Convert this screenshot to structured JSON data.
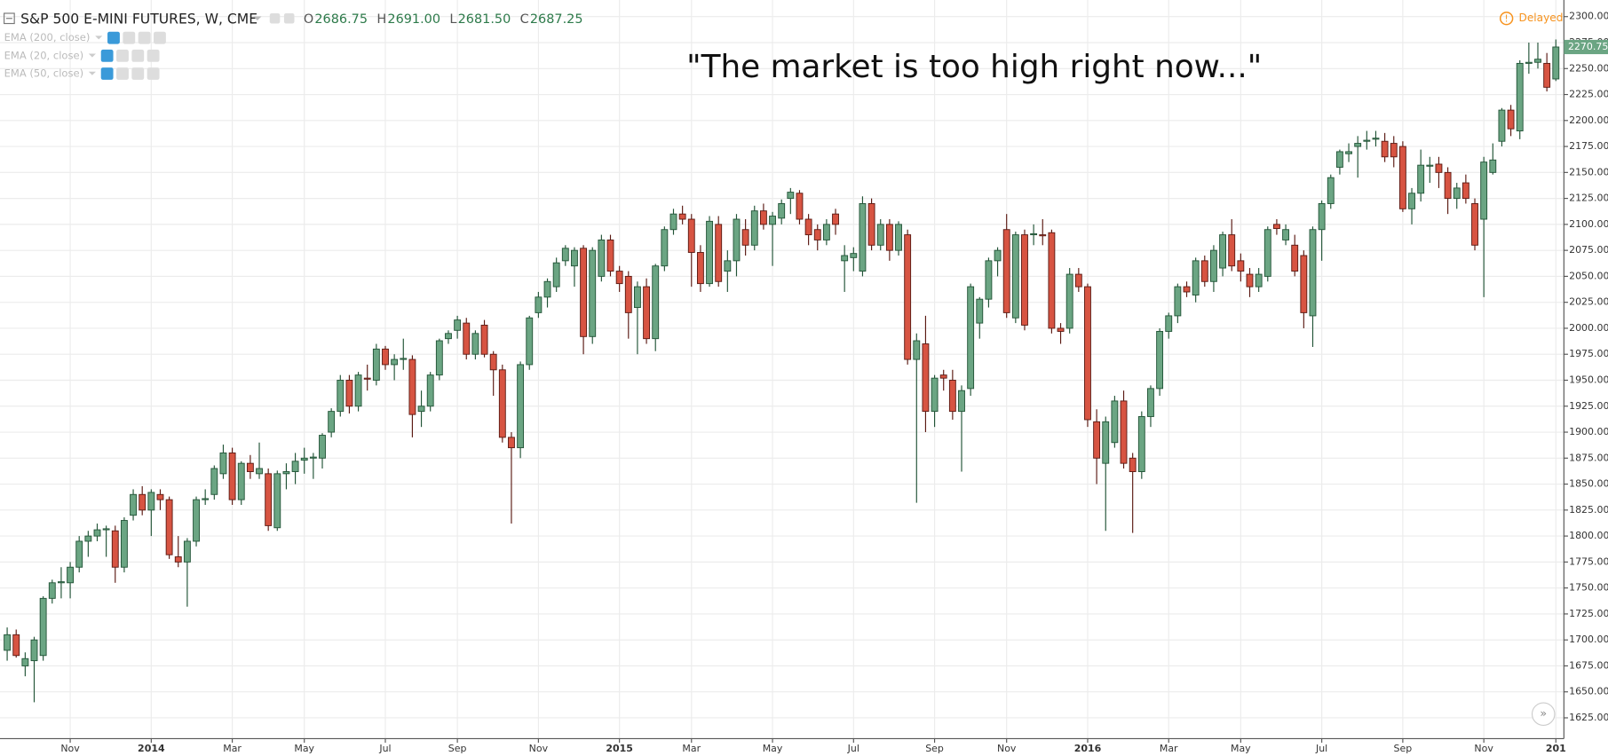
{
  "header": {
    "title": "S&P 500 E-MINI FUTURES, W, CME",
    "quotes": [
      {
        "label": "O",
        "value": "2686.75"
      },
      {
        "label": "H",
        "value": "2691.00"
      },
      {
        "label": "L",
        "value": "2681.50"
      },
      {
        "label": "C",
        "value": "2687.25"
      }
    ],
    "indicators": [
      "EMA (200, close)",
      "EMA (20, close)",
      "EMA (50, close)"
    ],
    "status": "Delayed"
  },
  "chart_data": {
    "type": "candlestick",
    "annotation": "\"The market is too high right now...\"",
    "up_color": "#6ba583",
    "up_border": "#225437",
    "down_color": "#d75442",
    "down_border": "#5b1a13",
    "grid": true,
    "ylim": [
      1605,
      2316
    ],
    "yticks": [
      {
        "value": 1625,
        "label": "1625.00"
      },
      {
        "value": 1650,
        "label": "1650.00"
      },
      {
        "value": 1675,
        "label": "1675.00"
      },
      {
        "value": 1700,
        "label": "1700.00"
      },
      {
        "value": 1725,
        "label": "1725.00"
      },
      {
        "value": 1750,
        "label": "1750.00"
      },
      {
        "value": 1775,
        "label": "1775.00"
      },
      {
        "value": 1800,
        "label": "1800.00"
      },
      {
        "value": 1825,
        "label": "1825.00"
      },
      {
        "value": 1850,
        "label": "1850.00"
      },
      {
        "value": 1875,
        "label": "1875.00"
      },
      {
        "value": 1900,
        "label": "1900.00"
      },
      {
        "value": 1925,
        "label": "1925.00"
      },
      {
        "value": 1950,
        "label": "1950.00"
      },
      {
        "value": 1975,
        "label": "1975.00"
      },
      {
        "value": 2000,
        "label": "2000.00"
      },
      {
        "value": 2025,
        "label": "2025.00"
      },
      {
        "value": 2050,
        "label": "2050.00"
      },
      {
        "value": 2075,
        "label": "2075.00"
      },
      {
        "value": 2100,
        "label": "2100.00"
      },
      {
        "value": 2125,
        "label": "2125.00"
      },
      {
        "value": 2150,
        "label": "2150.00"
      },
      {
        "value": 2175,
        "label": "2175.00"
      },
      {
        "value": 2200,
        "label": "2200.00"
      },
      {
        "value": 2225,
        "label": "2225.00"
      },
      {
        "value": 2250,
        "label": "2250.00"
      },
      {
        "value": 2275,
        "label": "2275.00"
      },
      {
        "value": 2300,
        "label": "2300.00"
      }
    ],
    "categories": [
      null,
      null,
      null,
      null,
      null,
      null,
      null,
      "Nov",
      null,
      null,
      null,
      null,
      null,
      null,
      null,
      null,
      "2014",
      null,
      null,
      null,
      null,
      null,
      null,
      null,
      null,
      "Mar",
      null,
      null,
      null,
      null,
      null,
      null,
      null,
      "May",
      null,
      null,
      null,
      null,
      null,
      null,
      null,
      null,
      "Jul",
      null,
      null,
      null,
      null,
      null,
      null,
      null,
      "Sep",
      null,
      null,
      null,
      null,
      null,
      null,
      null,
      null,
      "Nov",
      null,
      null,
      null,
      null,
      null,
      null,
      null,
      null,
      "2015",
      null,
      null,
      null,
      null,
      null,
      null,
      null,
      "Mar",
      null,
      null,
      null,
      null,
      null,
      null,
      null,
      null,
      "May",
      null,
      null,
      null,
      null,
      null,
      null,
      null,
      null,
      "Jul",
      null,
      null,
      null,
      null,
      null,
      null,
      null,
      null,
      "Sep",
      null,
      null,
      null,
      null,
      null,
      null,
      null,
      "Nov",
      null,
      null,
      null,
      null,
      null,
      null,
      null,
      null,
      "2016",
      null,
      null,
      null,
      null,
      null,
      null,
      null,
      null,
      "Mar",
      null,
      null,
      null,
      null,
      null,
      null,
      null,
      "May",
      null,
      null,
      null,
      null,
      null,
      null,
      null,
      null,
      "Jul",
      null,
      null,
      null,
      null,
      null,
      null,
      null,
      null,
      "Sep",
      null,
      null,
      null,
      null,
      null,
      null,
      null,
      null,
      "Nov",
      null,
      null,
      null,
      null,
      null,
      null,
      null,
      "201"
    ],
    "ohlc": [
      [
        1690,
        1712,
        1680,
        1705
      ],
      [
        1705,
        1710,
        1683,
        1685
      ],
      [
        1675,
        1688,
        1665,
        1682
      ],
      [
        1680,
        1703,
        1640,
        1700
      ],
      [
        1685,
        1742,
        1680,
        1740
      ],
      [
        1740,
        1758,
        1735,
        1755
      ],
      [
        1755,
        1770,
        1740,
        1756
      ],
      [
        1755,
        1775,
        1740,
        1770
      ],
      [
        1770,
        1800,
        1765,
        1795
      ],
      [
        1795,
        1805,
        1780,
        1800
      ],
      [
        1800,
        1812,
        1795,
        1806
      ],
      [
        1806,
        1810,
        1780,
        1807
      ],
      [
        1805,
        1810,
        1755,
        1770
      ],
      [
        1770,
        1818,
        1765,
        1815
      ],
      [
        1820,
        1845,
        1815,
        1840
      ],
      [
        1840,
        1848,
        1820,
        1825
      ],
      [
        1825,
        1845,
        1800,
        1842
      ],
      [
        1840,
        1845,
        1825,
        1835
      ],
      [
        1835,
        1838,
        1778,
        1782
      ],
      [
        1780,
        1800,
        1770,
        1775
      ],
      [
        1775,
        1798,
        1732,
        1795
      ],
      [
        1795,
        1838,
        1790,
        1835
      ],
      [
        1835,
        1845,
        1830,
        1836
      ],
      [
        1840,
        1868,
        1835,
        1865
      ],
      [
        1860,
        1888,
        1855,
        1880
      ],
      [
        1880,
        1885,
        1830,
        1835
      ],
      [
        1835,
        1872,
        1830,
        1870
      ],
      [
        1870,
        1878,
        1855,
        1862
      ],
      [
        1860,
        1890,
        1855,
        1865
      ],
      [
        1860,
        1865,
        1805,
        1810
      ],
      [
        1808,
        1863,
        1805,
        1860
      ],
      [
        1860,
        1870,
        1845,
        1862
      ],
      [
        1862,
        1880,
        1850,
        1872
      ],
      [
        1873,
        1885,
        1860,
        1875
      ],
      [
        1875,
        1880,
        1855,
        1876
      ],
      [
        1875,
        1899,
        1865,
        1897
      ],
      [
        1900,
        1923,
        1895,
        1920
      ],
      [
        1920,
        1955,
        1915,
        1950
      ],
      [
        1950,
        1955,
        1918,
        1925
      ],
      [
        1925,
        1958,
        1920,
        1955
      ],
      [
        1952,
        1965,
        1940,
        1951
      ],
      [
        1950,
        1985,
        1945,
        1980
      ],
      [
        1980,
        1983,
        1960,
        1965
      ],
      [
        1965,
        1975,
        1950,
        1970
      ],
      [
        1970,
        1990,
        1960,
        1971
      ],
      [
        1970,
        1974,
        1895,
        1917
      ],
      [
        1920,
        1940,
        1905,
        1925
      ],
      [
        1925,
        1958,
        1920,
        1955
      ],
      [
        1955,
        1990,
        1950,
        1988
      ],
      [
        1990,
        1998,
        1985,
        1995
      ],
      [
        1998,
        2012,
        1990,
        2008
      ],
      [
        2005,
        2010,
        1970,
        1975
      ],
      [
        1975,
        1998,
        1970,
        1995
      ],
      [
        2003,
        2008,
        1972,
        1975
      ],
      [
        1975,
        1978,
        1935,
        1960
      ],
      [
        1960,
        1965,
        1890,
        1895
      ],
      [
        1895,
        1900,
        1812,
        1885
      ],
      [
        1885,
        1968,
        1875,
        1965
      ],
      [
        1965,
        2012,
        1960,
        2010
      ],
      [
        2015,
        2035,
        2010,
        2030
      ],
      [
        2030,
        2048,
        2020,
        2045
      ],
      [
        2040,
        2068,
        2035,
        2063
      ],
      [
        2065,
        2080,
        2060,
        2077
      ],
      [
        2060,
        2078,
        2040,
        2075
      ],
      [
        2077,
        2080,
        1975,
        1992
      ],
      [
        1992,
        2078,
        1985,
        2075
      ],
      [
        2050,
        2090,
        2045,
        2085
      ],
      [
        2085,
        2090,
        2050,
        2055
      ],
      [
        2055,
        2060,
        2035,
        2043
      ],
      [
        2050,
        2055,
        1990,
        2015
      ],
      [
        2020,
        2045,
        1975,
        2040
      ],
      [
        2040,
        2048,
        1985,
        1990
      ],
      [
        1990,
        2062,
        1978,
        2060
      ],
      [
        2060,
        2098,
        2055,
        2095
      ],
      [
        2095,
        2115,
        2090,
        2110
      ],
      [
        2110,
        2118,
        2100,
        2105
      ],
      [
        2105,
        2110,
        2040,
        2073
      ],
      [
        2073,
        2080,
        2035,
        2043
      ],
      [
        2043,
        2108,
        2040,
        2103
      ],
      [
        2100,
        2108,
        2040,
        2045
      ],
      [
        2055,
        2075,
        2035,
        2065
      ],
      [
        2065,
        2110,
        2050,
        2105
      ],
      [
        2095,
        2105,
        2070,
        2080
      ],
      [
        2080,
        2118,
        2075,
        2113
      ],
      [
        2113,
        2120,
        2095,
        2100
      ],
      [
        2100,
        2112,
        2060,
        2108
      ],
      [
        2106,
        2124,
        2100,
        2120
      ],
      [
        2125,
        2135,
        2110,
        2131
      ],
      [
        2130,
        2133,
        2100,
        2105
      ],
      [
        2105,
        2110,
        2080,
        2090
      ],
      [
        2095,
        2100,
        2075,
        2085
      ],
      [
        2085,
        2105,
        2080,
        2100
      ],
      [
        2110,
        2115,
        2090,
        2100
      ],
      [
        2065,
        2080,
        2035,
        2070
      ],
      [
        2068,
        2078,
        2055,
        2072
      ],
      [
        2055,
        2127,
        2050,
        2120
      ],
      [
        2120,
        2125,
        2075,
        2080
      ],
      [
        2080,
        2105,
        2075,
        2100
      ],
      [
        2100,
        2105,
        2065,
        2075
      ],
      [
        2075,
        2103,
        2070,
        2100
      ],
      [
        2090,
        2095,
        1965,
        1970
      ],
      [
        1970,
        1995,
        1832,
        1988
      ],
      [
        1985,
        2012,
        1900,
        1920
      ],
      [
        1920,
        1955,
        1905,
        1952
      ],
      [
        1955,
        1960,
        1940,
        1952
      ],
      [
        1950,
        1960,
        1912,
        1920
      ],
      [
        1920,
        1945,
        1862,
        1940
      ],
      [
        1942,
        2043,
        1935,
        2040
      ],
      [
        2005,
        2030,
        1990,
        2028
      ],
      [
        2028,
        2068,
        2020,
        2065
      ],
      [
        2065,
        2078,
        2050,
        2075
      ],
      [
        2095,
        2110,
        2010,
        2015
      ],
      [
        2010,
        2093,
        2005,
        2090
      ],
      [
        2090,
        2095,
        1998,
        2003
      ],
      [
        2090,
        2100,
        2080,
        2091
      ],
      [
        2090,
        2105,
        2080,
        2089
      ],
      [
        2092,
        2095,
        1995,
        2000
      ],
      [
        2000,
        2005,
        1985,
        1997
      ],
      [
        2000,
        2058,
        1995,
        2052
      ],
      [
        2052,
        2058,
        2035,
        2040
      ],
      [
        2040,
        2043,
        1905,
        1912
      ],
      [
        1910,
        1922,
        1850,
        1875
      ],
      [
        1870,
        1915,
        1805,
        1910
      ],
      [
        1890,
        1935,
        1885,
        1930
      ],
      [
        1930,
        1940,
        1865,
        1870
      ],
      [
        1875,
        1880,
        1803,
        1862
      ],
      [
        1862,
        1920,
        1855,
        1915
      ],
      [
        1915,
        1945,
        1905,
        1942
      ],
      [
        1942,
        2000,
        1935,
        1997
      ],
      [
        1997,
        2015,
        1990,
        2012
      ],
      [
        2012,
        2043,
        2005,
        2040
      ],
      [
        2040,
        2045,
        2030,
        2035
      ],
      [
        2032,
        2068,
        2025,
        2065
      ],
      [
        2065,
        2070,
        2040,
        2045
      ],
      [
        2045,
        2080,
        2035,
        2075
      ],
      [
        2058,
        2093,
        2050,
        2090
      ],
      [
        2090,
        2105,
        2055,
        2060
      ],
      [
        2065,
        2072,
        2045,
        2055
      ],
      [
        2052,
        2058,
        2030,
        2040
      ],
      [
        2040,
        2058,
        2035,
        2052
      ],
      [
        2050,
        2098,
        2045,
        2095
      ],
      [
        2100,
        2105,
        2090,
        2096
      ],
      [
        2085,
        2100,
        2080,
        2095
      ],
      [
        2080,
        2090,
        2050,
        2055
      ],
      [
        2070,
        2075,
        2000,
        2015
      ],
      [
        2012,
        2098,
        1982,
        2095
      ],
      [
        2095,
        2123,
        2065,
        2120
      ],
      [
        2120,
        2148,
        2115,
        2145
      ],
      [
        2155,
        2172,
        2148,
        2170
      ],
      [
        2168,
        2178,
        2160,
        2170
      ],
      [
        2175,
        2185,
        2145,
        2178
      ],
      [
        2180,
        2190,
        2172,
        2181
      ],
      [
        2182,
        2190,
        2175,
        2183
      ],
      [
        2180,
        2188,
        2160,
        2165
      ],
      [
        2178,
        2185,
        2155,
        2165
      ],
      [
        2175,
        2180,
        2112,
        2115
      ],
      [
        2115,
        2135,
        2100,
        2130
      ],
      [
        2130,
        2172,
        2122,
        2157
      ],
      [
        2156,
        2165,
        2140,
        2157
      ],
      [
        2158,
        2165,
        2135,
        2150
      ],
      [
        2150,
        2155,
        2110,
        2125
      ],
      [
        2125,
        2140,
        2115,
        2135
      ],
      [
        2140,
        2148,
        2120,
        2125
      ],
      [
        2120,
        2125,
        2075,
        2080
      ],
      [
        2105,
        2165,
        2030,
        2160
      ],
      [
        2150,
        2178,
        2148,
        2162
      ],
      [
        2180,
        2212,
        2175,
        2210
      ],
      [
        2210,
        2215,
        2185,
        2192
      ],
      [
        2190,
        2258,
        2182,
        2255
      ],
      [
        2255,
        2275,
        2245,
        2256
      ],
      [
        2256,
        2275,
        2250,
        2259
      ],
      [
        2255,
        2265,
        2228,
        2232
      ],
      [
        2240,
        2278,
        2238,
        2270.75
      ]
    ]
  }
}
